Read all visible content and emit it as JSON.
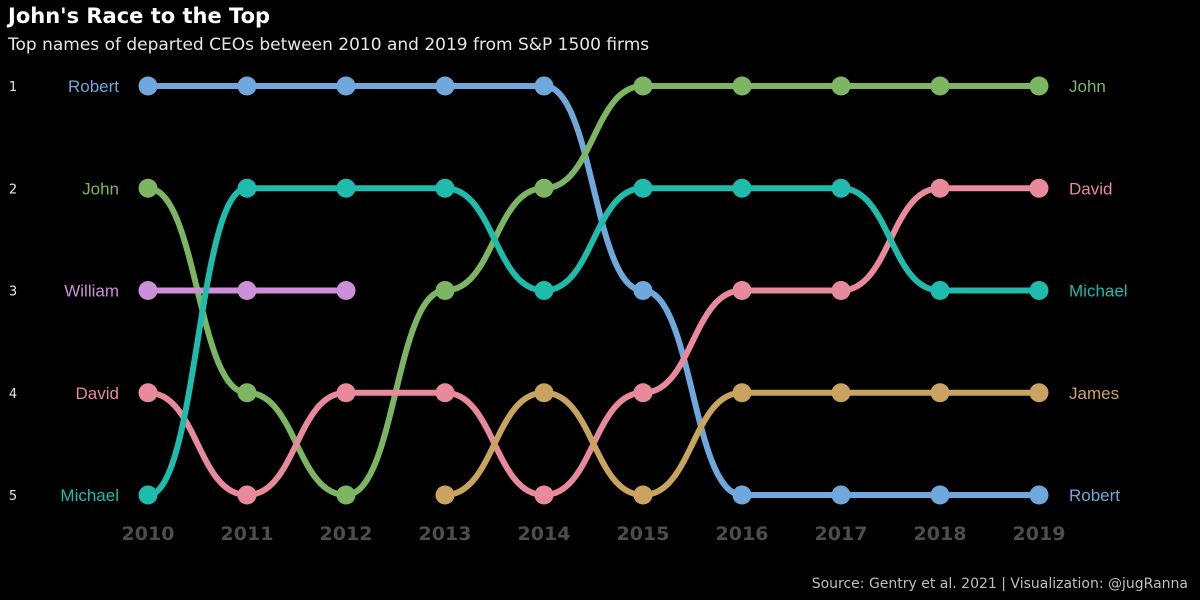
{
  "chart_data": {
    "type": "line",
    "subtype": "bump",
    "title": "John's Race to the Top",
    "subtitle": "Top names of departed CEOs between 2010 and 2019 from S&P 1500 firms",
    "caption": "Source: Gentry et al. 2021 | Visualization: @jugRanna",
    "x": [
      2010,
      2011,
      2012,
      2013,
      2014,
      2015,
      2016,
      2017,
      2018,
      2019
    ],
    "rank_labels": [
      "1",
      "2",
      "3",
      "4",
      "5"
    ],
    "ylim": [
      1,
      5
    ],
    "y_reversed": true,
    "grid": false,
    "legend": "none",
    "series": [
      {
        "name": "Robert",
        "color": "#6fa8dc",
        "ranks": [
          1,
          1,
          1,
          1,
          1,
          3,
          5,
          5,
          5,
          5
        ]
      },
      {
        "name": "John",
        "color": "#7cb662",
        "ranks": [
          2,
          4,
          5,
          3,
          2,
          1,
          1,
          1,
          1,
          1
        ]
      },
      {
        "name": "William",
        "color": "#cc8fd8",
        "ranks": [
          3,
          3,
          3,
          null,
          null,
          null,
          null,
          null,
          null,
          null
        ]
      },
      {
        "name": "David",
        "color": "#e9899c",
        "ranks": [
          4,
          5,
          4,
          4,
          5,
          4,
          3,
          3,
          2,
          2
        ]
      },
      {
        "name": "Michael",
        "color": "#1fbcad",
        "ranks": [
          5,
          2,
          2,
          2,
          3,
          2,
          2,
          2,
          3,
          3
        ]
      },
      {
        "name": "James",
        "color": "#c9a35f",
        "ranks": [
          null,
          null,
          null,
          5,
          4,
          5,
          4,
          4,
          4,
          4
        ]
      }
    ]
  }
}
